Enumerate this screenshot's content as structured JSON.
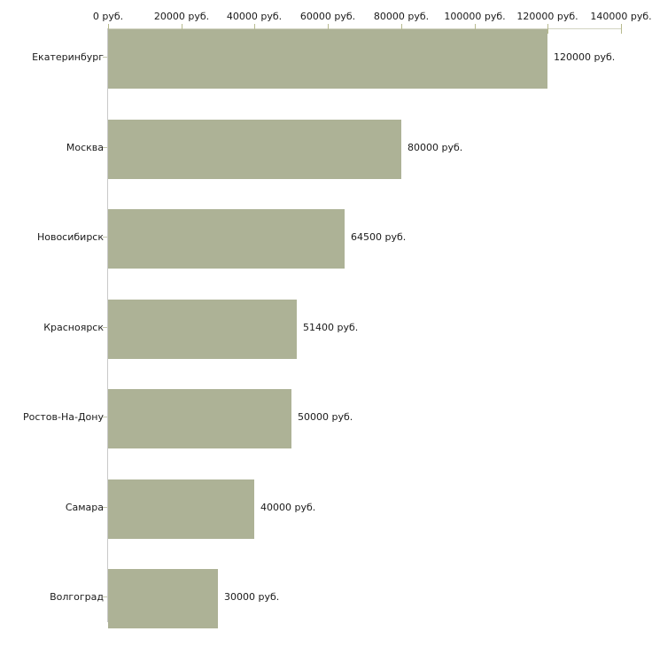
{
  "chart_data": {
    "type": "bar",
    "orientation": "horizontal",
    "categories": [
      "Екатеринбург",
      "Москва",
      "Новосибирск",
      "Красноярск",
      "Ростов-На-Дону",
      "Самара",
      "Волгоград"
    ],
    "values": [
      120000,
      80000,
      64500,
      51400,
      50000,
      40000,
      30000
    ],
    "bar_labels": [
      "120000 руб.",
      "80000 руб.",
      "64500 руб.",
      "51400 руб.",
      "50000 руб.",
      "40000 руб.",
      "30000 руб."
    ],
    "x_axis": {
      "position": "top",
      "min": 0,
      "max": 140000,
      "tick_step": 20000,
      "tick_values": [
        0,
        20000,
        40000,
        60000,
        80000,
        100000,
        120000,
        140000
      ],
      "tick_labels": [
        "0 руб.",
        "20000 руб.",
        "40000 руб.",
        "60000 руб.",
        "80000 руб.",
        "100000 руб.",
        "120000 руб.",
        "140000 руб."
      ]
    },
    "unit": "руб.",
    "grid": false,
    "legend": false,
    "colors": {
      "bar": "#adb296",
      "left_axis_line": "#c9c9c9",
      "top_axis_line": "#d2d4c2",
      "x_tick": "#b7ba8e",
      "category_tick": "#c4c6ab",
      "text": "#1a1a1a",
      "background": "#ffffff"
    }
  }
}
